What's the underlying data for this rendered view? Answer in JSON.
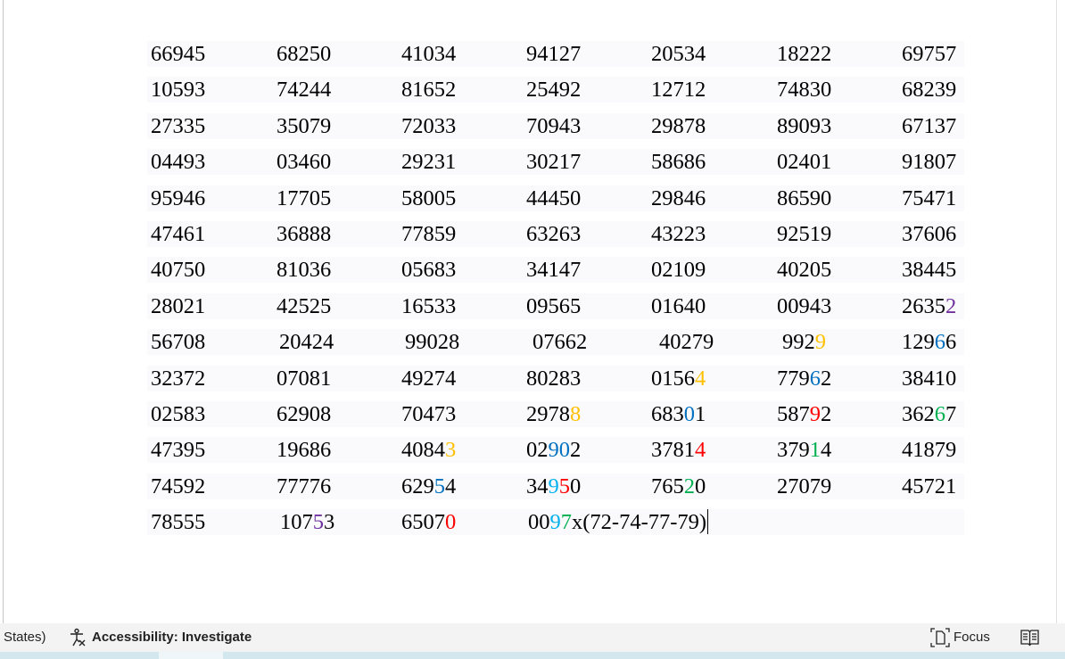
{
  "colors": {
    "k": "#000000",
    "purple": "#7030A0",
    "orange": "#FFC000",
    "blue": "#0070C0",
    "red": "#FF0000",
    "green": "#00B050",
    "lightblue": "#00B0F0"
  },
  "table": [
    [
      [
        [
          "66945",
          "k"
        ]
      ],
      [
        [
          "68250",
          "k"
        ]
      ],
      [
        [
          "41034",
          "k"
        ]
      ],
      [
        [
          "94127",
          "k"
        ]
      ],
      [
        [
          "20534",
          "k"
        ]
      ],
      [
        [
          "18222",
          "k"
        ]
      ],
      [
        [
          "69757",
          "k"
        ]
      ]
    ],
    [
      [
        [
          "10593",
          "k"
        ]
      ],
      [
        [
          "74244",
          "k"
        ]
      ],
      [
        [
          "81652",
          "k"
        ]
      ],
      [
        [
          "25492",
          "k"
        ]
      ],
      [
        [
          "12712",
          "k"
        ]
      ],
      [
        [
          "74830",
          "k"
        ]
      ],
      [
        [
          "68239",
          "k"
        ]
      ]
    ],
    [
      [
        [
          "27335",
          "k"
        ]
      ],
      [
        [
          "35079",
          "k"
        ]
      ],
      [
        [
          "72033",
          "k"
        ]
      ],
      [
        [
          "70943",
          "k"
        ]
      ],
      [
        [
          "29878",
          "k"
        ]
      ],
      [
        [
          "89093",
          "k"
        ]
      ],
      [
        [
          "67137",
          "k"
        ]
      ]
    ],
    [
      [
        [
          "04493",
          "k"
        ]
      ],
      [
        [
          "03460",
          "k"
        ]
      ],
      [
        [
          "29231",
          "k"
        ]
      ],
      [
        [
          "30217",
          "k"
        ]
      ],
      [
        [
          "58686",
          "k"
        ]
      ],
      [
        [
          "02401",
          "k"
        ]
      ],
      [
        [
          "91807",
          "k"
        ]
      ]
    ],
    [
      [
        [
          "95946",
          "k"
        ]
      ],
      [
        [
          "17705",
          "k"
        ]
      ],
      [
        [
          "58005",
          "k"
        ]
      ],
      [
        [
          "44450",
          "k"
        ]
      ],
      [
        [
          "29846",
          "k"
        ]
      ],
      [
        [
          "86590",
          "k"
        ]
      ],
      [
        [
          "75471",
          "k"
        ]
      ]
    ],
    [
      [
        [
          "47461",
          "k"
        ]
      ],
      [
        [
          "36888",
          "k"
        ]
      ],
      [
        [
          "77859",
          "k"
        ]
      ],
      [
        [
          "63263",
          "k"
        ]
      ],
      [
        [
          "43223",
          "k"
        ]
      ],
      [
        [
          "92519",
          "k"
        ]
      ],
      [
        [
          "37606",
          "k"
        ]
      ]
    ],
    [
      [
        [
          "40750",
          "k"
        ]
      ],
      [
        [
          "81036",
          "k"
        ]
      ],
      [
        [
          "05683",
          "k"
        ]
      ],
      [
        [
          "34147",
          "k"
        ]
      ],
      [
        [
          "02109",
          "k"
        ]
      ],
      [
        [
          "40205",
          "k"
        ]
      ],
      [
        [
          "38445",
          "k"
        ]
      ]
    ],
    [
      [
        [
          "28021",
          "k"
        ]
      ],
      [
        [
          "42525",
          "k"
        ]
      ],
      [
        [
          "16533",
          "k"
        ]
      ],
      [
        [
          "09565",
          "k"
        ]
      ],
      [
        [
          "01640",
          "k"
        ]
      ],
      [
        [
          "00943",
          "k"
        ]
      ],
      [
        [
          "2635",
          "k"
        ],
        [
          "2",
          "purple"
        ]
      ]
    ],
    [
      [
        [
          "56708",
          "k"
        ]
      ],
      [
        [
          "20424",
          "k"
        ]
      ],
      [
        [
          "99028",
          "k"
        ]
      ],
      [
        [
          "07662",
          "k"
        ]
      ],
      [
        [
          "40279",
          "k"
        ]
      ],
      [
        [
          "992",
          "k"
        ],
        [
          "9",
          "orange"
        ]
      ],
      [
        [
          "129",
          "k"
        ],
        [
          "6",
          "blue"
        ],
        [
          "6",
          "k"
        ]
      ]
    ],
    [
      [
        [
          "32372",
          "k"
        ]
      ],
      [
        [
          "07081",
          "k"
        ]
      ],
      [
        [
          "49274",
          "k"
        ]
      ],
      [
        [
          "80283",
          "k"
        ]
      ],
      [
        [
          "0156",
          "k"
        ],
        [
          "4",
          "orange"
        ]
      ],
      [
        [
          "779",
          "k"
        ],
        [
          "6",
          "blue"
        ],
        [
          "2",
          "k"
        ]
      ],
      [
        [
          "38410",
          "k"
        ]
      ]
    ],
    [
      [
        [
          "02583",
          "k"
        ]
      ],
      [
        [
          "62908",
          "k"
        ]
      ],
      [
        [
          "70473",
          "k"
        ]
      ],
      [
        [
          "2978",
          "k"
        ],
        [
          "8",
          "orange"
        ]
      ],
      [
        [
          "683",
          "k"
        ],
        [
          "0",
          "blue"
        ],
        [
          "1",
          "k"
        ]
      ],
      [
        [
          "587",
          "k"
        ],
        [
          "9",
          "red"
        ],
        [
          "2",
          "k"
        ]
      ],
      [
        [
          "362",
          "k"
        ],
        [
          "6",
          "green"
        ],
        [
          "7",
          "k"
        ]
      ]
    ],
    [
      [
        [
          "47395",
          "k"
        ]
      ],
      [
        [
          "19686",
          "k"
        ]
      ],
      [
        [
          "4084",
          "k"
        ],
        [
          "3",
          "orange"
        ]
      ],
      [
        [
          "02",
          "k"
        ],
        [
          "90",
          "blue"
        ],
        [
          "2",
          "k"
        ]
      ],
      [
        [
          "3781",
          "k"
        ],
        [
          "4",
          "red"
        ]
      ],
      [
        [
          "379",
          "k"
        ],
        [
          "1",
          "green"
        ],
        [
          "4",
          "k"
        ]
      ],
      [
        [
          "41879",
          "k"
        ]
      ]
    ],
    [
      [
        [
          "74592",
          "k"
        ]
      ],
      [
        [
          "77776",
          "k"
        ]
      ],
      [
        [
          "629",
          "k"
        ],
        [
          "5",
          "blue"
        ],
        [
          "4",
          "k"
        ]
      ],
      [
        [
          "34",
          "k"
        ],
        [
          "9",
          "lightblue"
        ],
        [
          "5",
          "red"
        ],
        [
          "0",
          "k"
        ]
      ],
      [
        [
          "765",
          "k"
        ],
        [
          "2",
          "green"
        ],
        [
          "0",
          "k"
        ]
      ],
      [
        [
          "27079",
          "k"
        ]
      ],
      [
        [
          "45721",
          "k"
        ]
      ]
    ],
    [
      [
        [
          "78555",
          "k"
        ]
      ],
      [
        [
          "107",
          "k"
        ],
        [
          "5",
          "purple"
        ],
        [
          "3",
          "k"
        ]
      ],
      [
        [
          "6507",
          "k"
        ],
        [
          "0",
          "red"
        ]
      ],
      [
        [
          "00",
          "k"
        ],
        [
          "9",
          "lightblue"
        ],
        [
          "7",
          "green"
        ],
        [
          "x(72-74-77-79)",
          "k"
        ]
      ]
    ]
  ],
  "status": {
    "left_fragment": "States)",
    "accessibility": "Accessibility: Investigate",
    "focus": "Focus"
  }
}
